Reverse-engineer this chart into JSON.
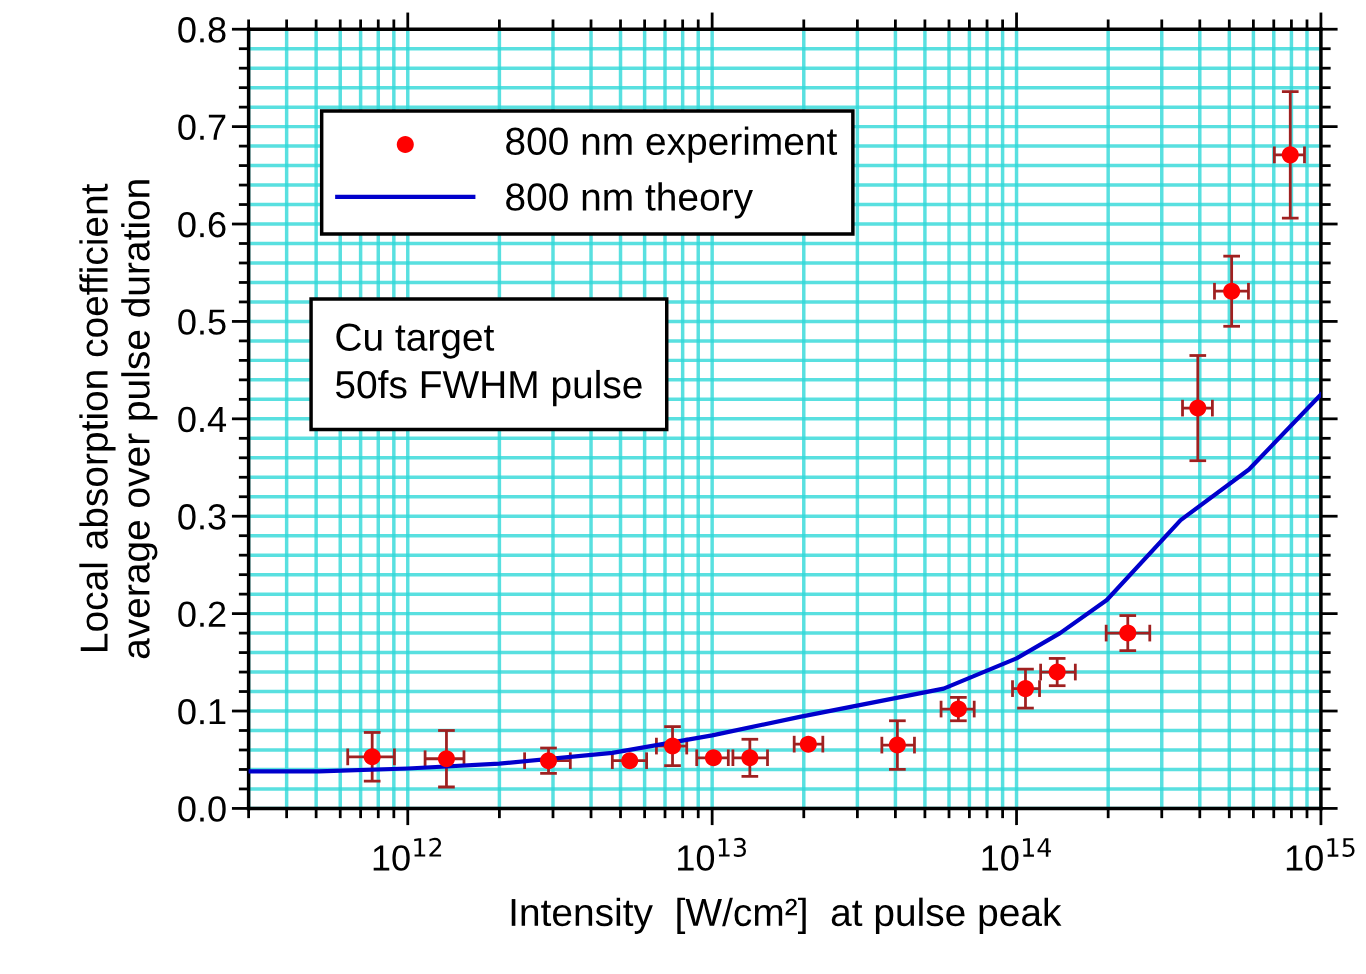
{
  "chart_data": {
    "type": "scatter",
    "xlabel": "Intensity  [W/cm²]  at pulse peak",
    "ylabel": "Local absorption coefficient\naverage over pulse duration",
    "log": "x",
    "xlim": [
      300000000000.0,
      1000000000000000.0
    ],
    "ylim": [
      0,
      0.8
    ],
    "xticks": [
      {
        "value": 1000000000000.0,
        "label": "10$^{12}$"
      },
      {
        "value": 10000000000000.0,
        "label": "10$^{13}$"
      },
      {
        "value": 100000000000000.0,
        "label": "10$^{14}$"
      },
      {
        "value": 1000000000000000.0,
        "label": "10$^{15}$"
      }
    ],
    "yticks": [
      {
        "value": 0,
        "label": "0.0"
      },
      0.1,
      0.2,
      0.3,
      0.4,
      0.5,
      0.6,
      0.7,
      0.8
    ],
    "grid": true,
    "legend": "top left",
    "annotations": [
      "Cu target\n50fs FWHM pulse"
    ],
    "series": [
      {
        "name": "800 nm experiment",
        "color": "#ff0000",
        "marker": "circle",
        "x": [
          764000000000.0,
          1340000000000.0,
          2900000000000.0,
          5360000000000.0,
          7410000000000.0,
          10100000000000.0,
          13300000000000.0,
          20700000000000.0,
          40600000000000.0,
          64400000000000.0,
          107000000000000.0,
          136000000000000.0,
          232000000000000.0,
          394000000000000.0,
          509000000000000.0,
          793000000000000.0
        ],
        "values": [
          0.053,
          0.051,
          0.049,
          0.049,
          0.064,
          0.052,
          0.052,
          0.066,
          0.065,
          0.102,
          0.123,
          0.14,
          0.18,
          0.411,
          0.531,
          0.671
        ],
        "errors": [
          0.025,
          0.029,
          0.013,
          null,
          0.02,
          null,
          0.019,
          null,
          0.025,
          0.012,
          0.02,
          0.014,
          0.018,
          0.054,
          0.036,
          0.065
        ],
        "xerrors": [
          [
            635000000000.0,
            904000000000.0
          ],
          [
            1140000000000.0,
            1530000000000.0
          ],
          [
            2420000000000.0,
            3420000000000.0
          ],
          [
            4700000000000.0,
            6090000000000.0
          ],
          [
            6560000000000.0,
            8250000000000.0
          ],
          [
            8900000000000.0,
            11300000000000.0
          ],
          [
            11700000000000.0,
            15200000000000.0
          ],
          [
            18600000000000.0,
            23100000000000.0
          ],
          [
            36100000000000.0,
            46200000000000.0
          ],
          [
            56500000000000.0,
            72600000000000.0
          ],
          [
            97000000000000.0,
            119000000000000.0
          ],
          [
            120000000000000.0,
            156000000000000.0
          ],
          [
            197000000000000.0,
            274000000000000.0
          ],
          [
            351000000000000.0,
            440000000000000.0
          ],
          [
            447000000000000.0,
            578000000000000.0
          ],
          [
            703000000000000.0,
            883000000000000.0
          ]
        ]
      },
      {
        "name": "800 nm theory",
        "type": "line",
        "color": "#0000cc",
        "marker": "none",
        "line_style": "solid",
        "x": [
          300000000000.0,
          510000000000.0,
          1000000000000.0,
          2000000000000.0,
          4700000000000.0,
          10000000000000.0,
          19400000000000.0,
          57600000000000.0,
          100000000000000.0,
          139000000000000.0,
          198000000000000.0,
          346000000000000.0,
          580000000000000.0,
          1000000000000000.0
        ],
        "values": [
          0.038,
          0.038,
          0.041,
          0.046,
          0.057,
          0.075,
          0.094,
          0.123,
          0.154,
          0.18,
          0.214,
          0.296,
          0.348,
          0.425
        ]
      }
    ]
  }
}
